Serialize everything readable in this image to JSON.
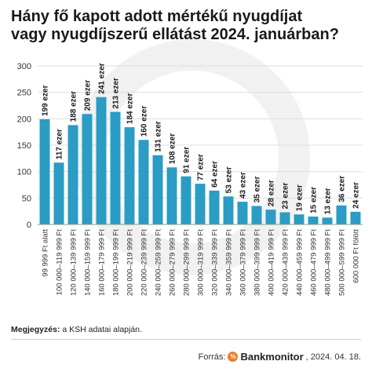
{
  "title_line1": "Hány fő kapott adott mértékű nyugdíjat",
  "title_line2": "vagy nyugdíjszerű ellátást 2024. januárban?",
  "note_label": "Megjegyzés:",
  "note_text": " a KSH adatai alapján.",
  "source_label": "Forrás:",
  "brand_badge": "%",
  "brand_name": "Bankmonitor",
  "source_date": ", 2024. 04. 18.",
  "colors": {
    "bar": "#2b9cc4",
    "grid": "#dddddd",
    "text": "#333333"
  },
  "chart_data": {
    "type": "bar",
    "title": "Hány fő kapott adott mértékű nyugdíjat vagy nyugdíjszerű ellátást 2024. januárban?",
    "xlabel": "",
    "ylabel": "",
    "ylim": [
      0,
      300
    ],
    "yticks": [
      0,
      50,
      100,
      150,
      200,
      250,
      300
    ],
    "grid": true,
    "categories": [
      "99 999 Ft alatt",
      "100 000–119 999 Ft",
      "120 000–139 999 Ft",
      "140 000–159 999 Ft",
      "160 000–179 999 Ft",
      "180 000–199 999 Ft",
      "200 000–219 999 Ft",
      "220 000–239 999 Ft",
      "240 000–259 999 Ft",
      "260 000–279 999 Ft",
      "280 000–299 999 Ft",
      "300 000–319 999 Ft",
      "320 000–339 999 Ft",
      "340 000–359 999 Ft",
      "360 000–379 999 Ft",
      "380 000–399 999 Ft",
      "400 000–419 999 Ft",
      "420 000–439 999 Ft",
      "440 000–459 999 Ft",
      "460 000–479 999 Ft",
      "480 000–499 999 Ft",
      "500 000–599 999 Ft",
      "600 000 Ft fölött"
    ],
    "values": [
      199,
      117,
      188,
      209,
      241,
      213,
      184,
      160,
      131,
      108,
      91,
      77,
      64,
      53,
      43,
      35,
      28,
      23,
      19,
      15,
      13,
      36,
      24
    ],
    "data_labels": [
      "199 ezer",
      "117 ezer",
      "188 ezer",
      "209 ezer",
      "241 ezer",
      "213 ezer",
      "184 ezer",
      "160 ezer",
      "131 ezer",
      "108 ezer",
      "91 ezer",
      "77 ezer",
      "64 ezer",
      "53 ezer",
      "43 ezer",
      "35 ezer",
      "28 ezer",
      "23 ezer",
      "19 ezer",
      "15 ezer",
      "13 ezer",
      "36 ezer",
      "24 ezer"
    ]
  }
}
